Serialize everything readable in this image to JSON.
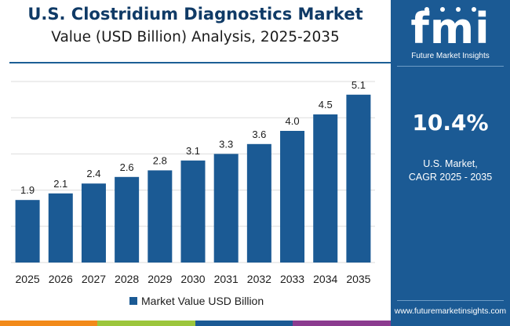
{
  "header": {
    "title_line1": "U.S. Clostridium Diagnostics Market",
    "title_line2": "Value (USD Billion) Analysis, 2025-2035"
  },
  "chart_data": {
    "type": "bar",
    "title": "U.S. Clostridium Diagnostics Market Value (USD Billion) Analysis, 2025-2035",
    "categories": [
      "2025",
      "2026",
      "2027",
      "2028",
      "2029",
      "2030",
      "2031",
      "2032",
      "2033",
      "2034",
      "2035"
    ],
    "values": [
      1.9,
      2.1,
      2.4,
      2.6,
      2.8,
      3.1,
      3.3,
      3.6,
      4.0,
      4.5,
      5.1
    ],
    "value_labels": [
      "1.9",
      "2.1",
      "2.4",
      "2.6",
      "2.8",
      "3.1",
      "3.3",
      "3.6",
      "4.0",
      "4.5",
      "5.1"
    ],
    "series": [
      {
        "name": "Market Value USD Billion"
      }
    ],
    "ylim": [
      0,
      5.5
    ],
    "grid": true,
    "legend": "bottom-center",
    "bar_color": "#1b5a94",
    "grid_color": "#dddddd"
  },
  "panel": {
    "brand_letters": "fmi",
    "brand_tagline": "Future Market Insights",
    "cagr_value": "10.4%",
    "cagr_label_line1": "U.S. Market,",
    "cagr_label_line2": "CAGR 2025 - 2035",
    "website": "www.futuremarketinsights.com",
    "background_color": "#1b5a94"
  },
  "colors": {
    "title": "#0f3a66",
    "accent": "#1c5f95",
    "strip": [
      "#f28a1a",
      "#9cc63c",
      "#1b5a94",
      "#8b3b8f"
    ]
  }
}
